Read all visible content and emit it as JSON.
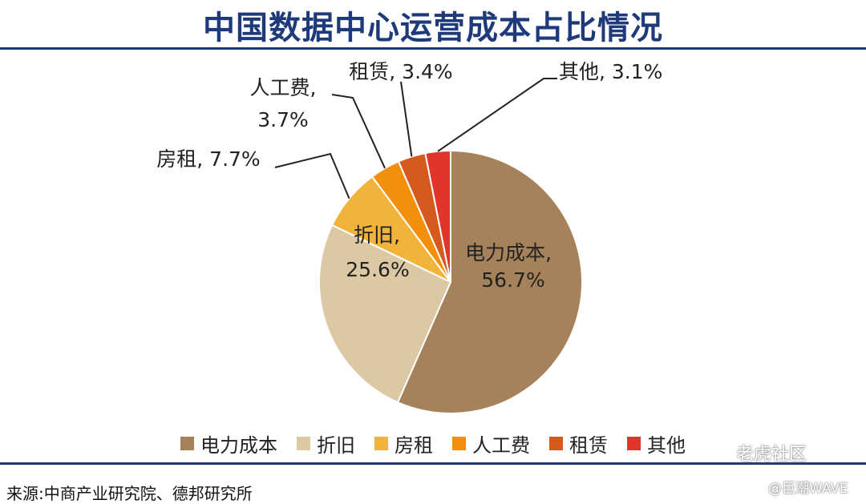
{
  "title": "中国数据中心运营成本占比情况",
  "chart_data": {
    "type": "pie",
    "title": "中国数据中心运营成本占比情况",
    "slices": [
      {
        "label": "电力成本",
        "value": 56.7,
        "value_label": "56.7%",
        "color": "#a58259"
      },
      {
        "label": "折旧",
        "value": 25.6,
        "value_label": "25.6%",
        "color": "#dcc9a4"
      },
      {
        "label": "房租",
        "value": 7.7,
        "value_label": "7.7%",
        "color": "#f2b33a"
      },
      {
        "label": "人工费",
        "value": 3.7,
        "value_label": "3.7%",
        "color": "#f28f0c"
      },
      {
        "label": "租赁",
        "value": 3.4,
        "value_label": "3.4%",
        "color": "#d45a1d"
      },
      {
        "label": "其他",
        "value": 3.1,
        "value_label": "3.1%",
        "color": "#e3342c"
      }
    ],
    "legend": {
      "position": "bottom"
    }
  },
  "source": "来源:中商产业研究院、德邦研究所",
  "watermark": {
    "main": "老虎社区",
    "sub": "@巨潮WAVE"
  }
}
